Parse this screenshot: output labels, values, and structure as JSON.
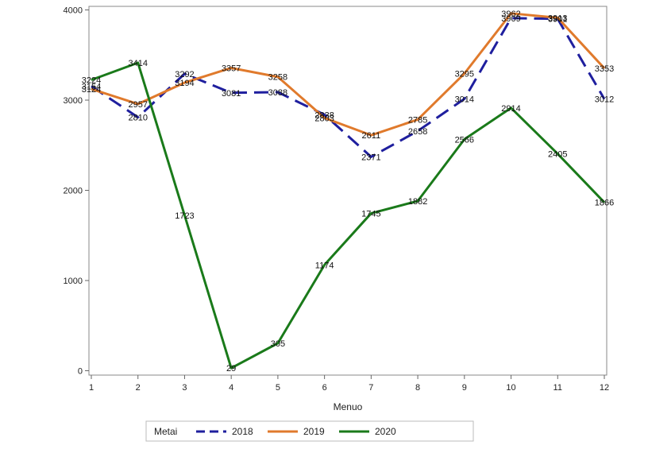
{
  "chart_data": {
    "type": "line",
    "xlabel": "Menuo",
    "ylabel": "",
    "x": [
      1,
      2,
      3,
      4,
      5,
      6,
      7,
      8,
      9,
      10,
      11,
      12
    ],
    "ylim": [
      0,
      4000
    ],
    "yticks": [
      0,
      1000,
      2000,
      3000,
      4000
    ],
    "grid": false,
    "legend": {
      "title": "Metai",
      "placement": "bottom"
    },
    "series": [
      {
        "name": "2018",
        "color": "#1f1f9e",
        "dash": "dashed",
        "values": [
          3154,
          2810,
          3292,
          3081,
          3088,
          2838,
          2371,
          2658,
          3014,
          3909,
          3901,
          3012
        ]
      },
      {
        "name": "2019",
        "color": "#e07a2c",
        "dash": "solid",
        "values": [
          3124,
          2957,
          3194,
          3357,
          3258,
          2803,
          2611,
          2785,
          3295,
          3962,
          3913,
          3353
        ]
      },
      {
        "name": "2020",
        "color": "#1a7a1a",
        "dash": "solid",
        "values": [
          3224,
          3414,
          1723,
          29,
          305,
          1174,
          1745,
          1882,
          2566,
          2914,
          2405,
          1866
        ]
      }
    ]
  }
}
